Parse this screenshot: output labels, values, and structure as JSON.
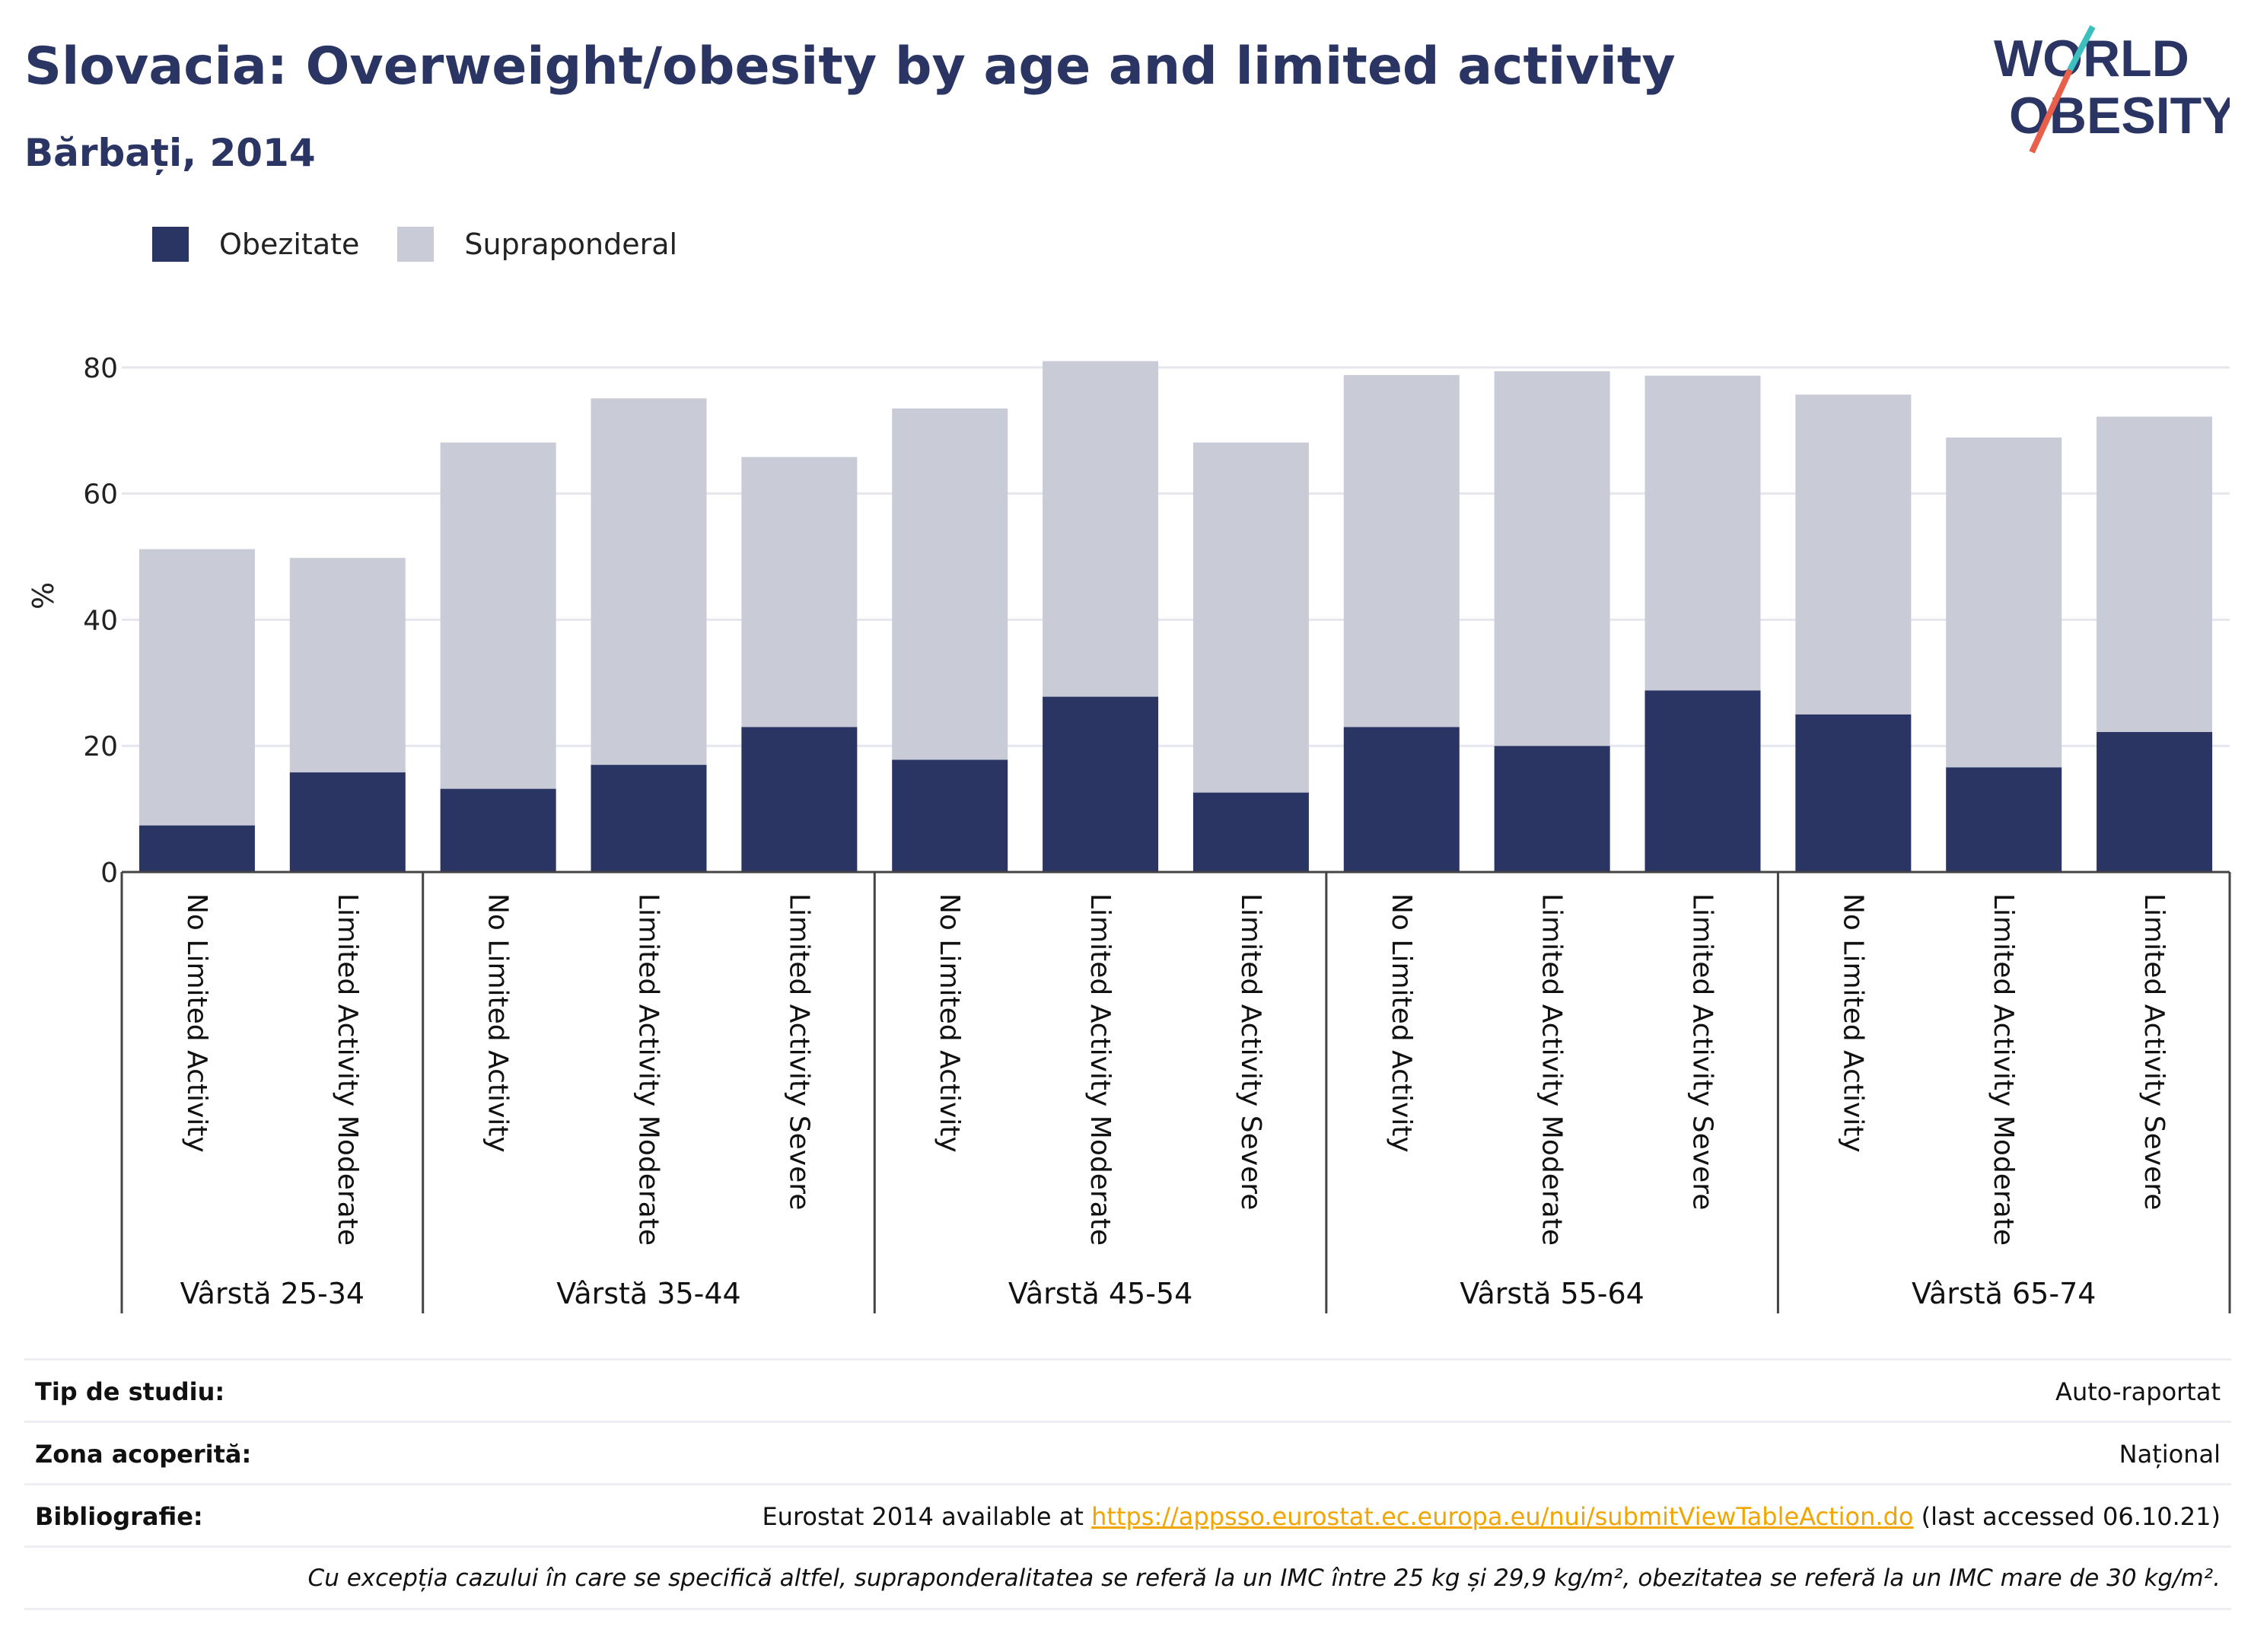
{
  "header": {
    "title": "Slovacia: Overweight/obesity by age and limited activity",
    "subtitle": "Bărbați, 2014"
  },
  "logo": {
    "line1": "WORLD",
    "line2": "OBESITY",
    "icon": "world-obesity-logo"
  },
  "colors": {
    "obesity": "#2a3563",
    "overweight": "#c9cbd7",
    "accent_teal": "#3bbfbf",
    "accent_red": "#e8604c",
    "link": "#f0a500"
  },
  "chart_data": {
    "type": "bar",
    "stacked": true,
    "ylabel": "%",
    "ylim": [
      0,
      90
    ],
    "yticks": [
      0,
      20,
      40,
      60,
      80
    ],
    "grid": true,
    "legend_position": "top-left",
    "groups": [
      {
        "label": "Vârstă 25-34",
        "categories": [
          "No Limited Activity",
          "Limited Activity Moderate"
        ]
      },
      {
        "label": "Vârstă 35-44",
        "categories": [
          "No Limited Activity",
          "Limited Activity Moderate",
          "Limited Activity Severe"
        ]
      },
      {
        "label": "Vârstă 45-54",
        "categories": [
          "No Limited Activity",
          "Limited Activity Moderate",
          "Limited Activity Severe"
        ]
      },
      {
        "label": "Vârstă 55-64",
        "categories": [
          "No Limited Activity",
          "Limited Activity Moderate",
          "Limited Activity Severe"
        ]
      },
      {
        "label": "Vârstă 65-74",
        "categories": [
          "No Limited Activity",
          "Limited Activity Moderate",
          "Limited Activity Severe"
        ]
      }
    ],
    "series": [
      {
        "name": "Obezitate",
        "values": [
          7.4,
          15.8,
          13.2,
          17.0,
          23.0,
          17.8,
          27.8,
          12.6,
          23.0,
          20.0,
          28.8,
          25.0,
          16.6,
          22.2
        ]
      },
      {
        "name": "Supraponderal",
        "values": [
          43.8,
          34.0,
          54.9,
          58.1,
          42.8,
          55.7,
          53.2,
          55.5,
          55.8,
          59.4,
          49.9,
          50.7,
          52.3,
          50.0
        ]
      }
    ]
  },
  "meta": {
    "study_type_label": "Tip de studiu:",
    "study_type_value": "Auto-raportat",
    "coverage_label": "Zona acoperită:",
    "coverage_value": "Național",
    "bibliography_label": "Bibliografie:",
    "bibliography_prefix": "Eurostat 2014 available at ",
    "bibliography_link": "https://appsso.eurostat.ec.europa.eu/nui/submitViewTableAction.do",
    "bibliography_suffix": " (last accessed 06.10.21)",
    "footnote": "Cu excepția cazului în care se specifică altfel, supraponderalitatea se referă la un IMC între 25 kg și 29,9 kg/m², obezitatea se referă la un IMC mare de 30 kg/m²."
  }
}
